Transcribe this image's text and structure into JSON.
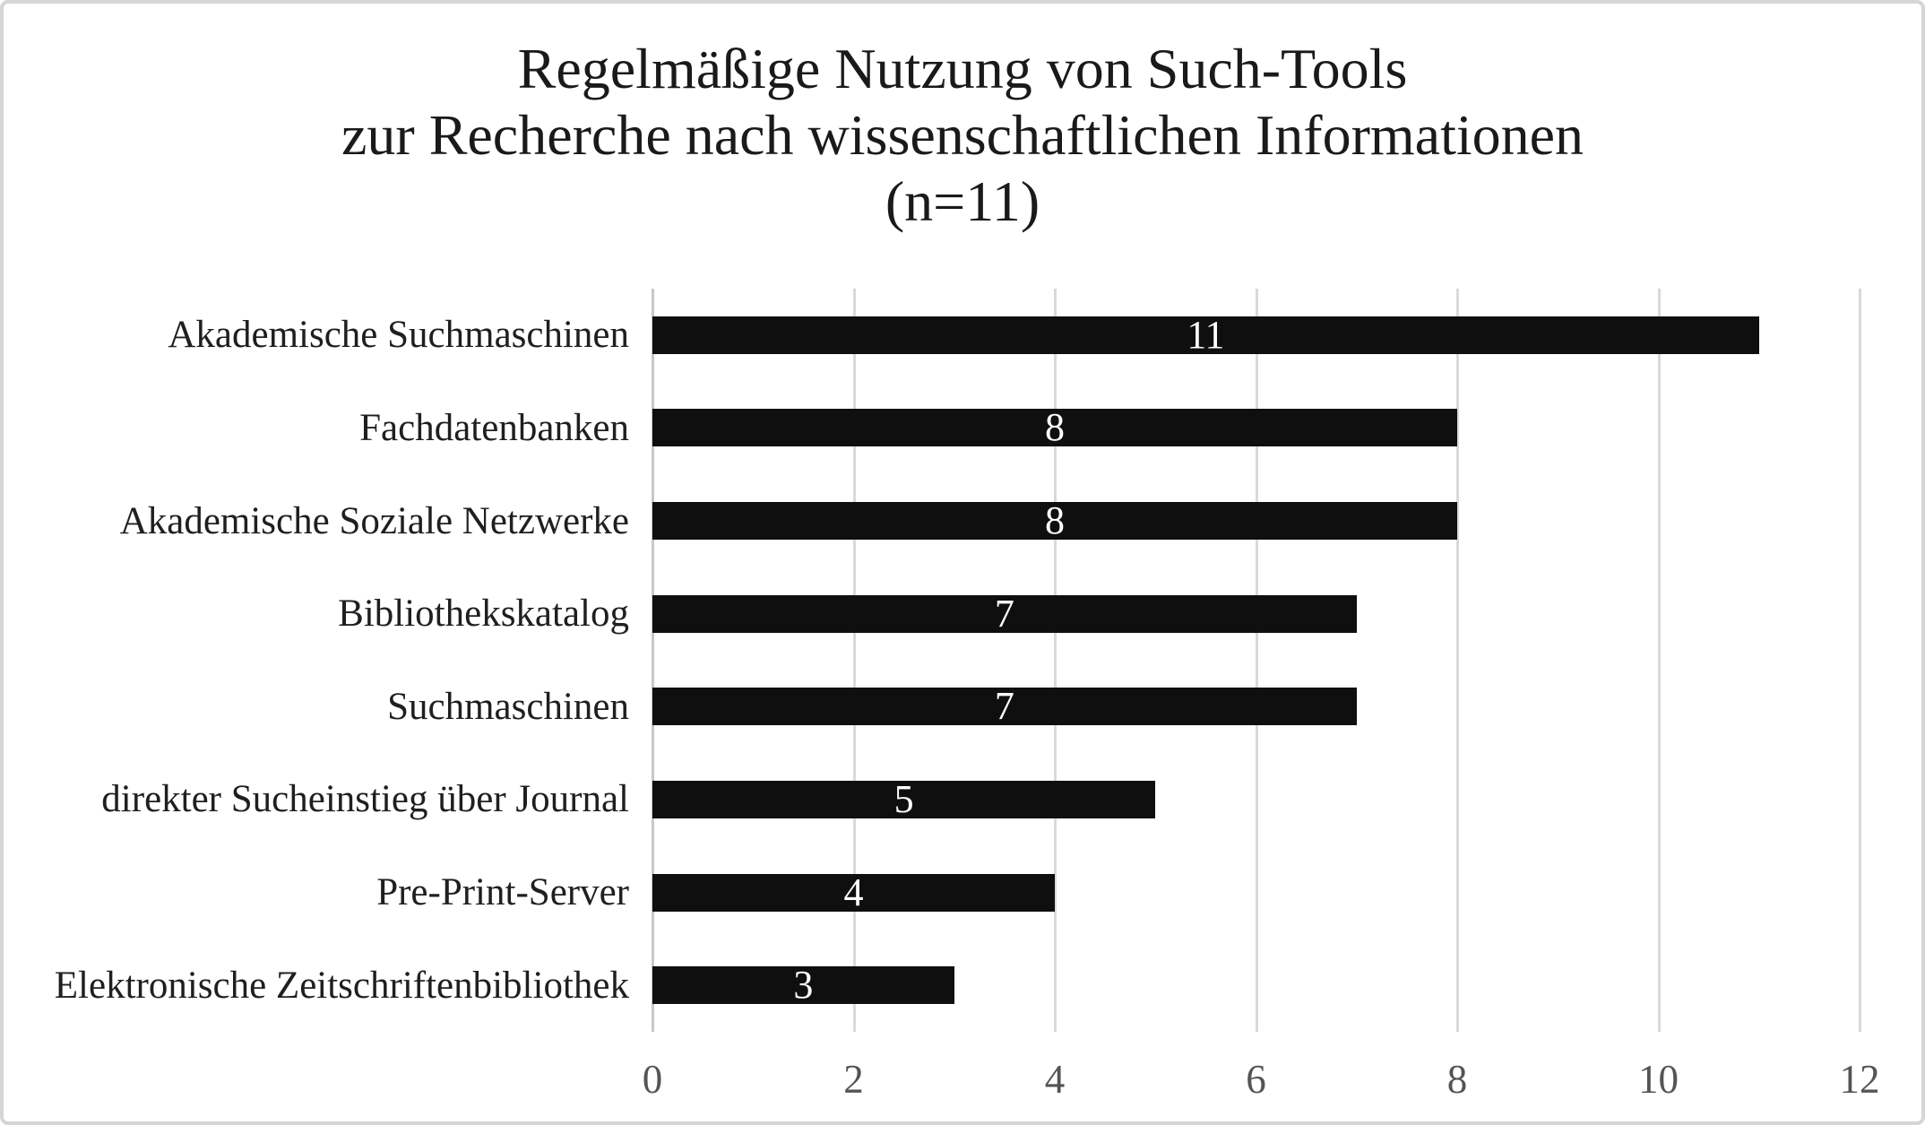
{
  "title": {
    "line1": "Regelmäßige Nutzung von Such-Tools",
    "line2": "zur Recherche nach wissenschaftlichen Informationen",
    "line3": "(n=11)"
  },
  "chart_data": {
    "type": "bar",
    "orientation": "horizontal",
    "title": "Regelmäßige Nutzung von Such-Tools zur Recherche nach wissenschaftlichen Informationen (n=11)",
    "categories": [
      "Akademische Suchmaschinen",
      "Fachdatenbanken",
      "Akademische Soziale Netzwerke",
      "Bibliothekskatalog",
      "Suchmaschinen",
      "direkter Sucheinstieg über Journal",
      "Pre-Print-Server",
      "Elektronische Zeitschriftenbibliothek"
    ],
    "values": [
      11,
      8,
      8,
      7,
      7,
      5,
      4,
      3
    ],
    "xlabel": "",
    "ylabel": "",
    "xlim": [
      0,
      12
    ],
    "xticks": [
      0,
      2,
      4,
      6,
      8,
      10,
      12
    ],
    "grid": true,
    "legend": false,
    "value_labels_position": "inside-center",
    "colors": {
      "bar": "#0f0f0f",
      "value_label": "#ffffff",
      "gridline": "#d9d9d9",
      "axis_line": "#c8c8c8",
      "tick_text": "#545454",
      "category_text": "#1f1f1f",
      "title_text": "#1a1a1a",
      "background": "#ffffff",
      "border": "#d6d6d6"
    }
  }
}
